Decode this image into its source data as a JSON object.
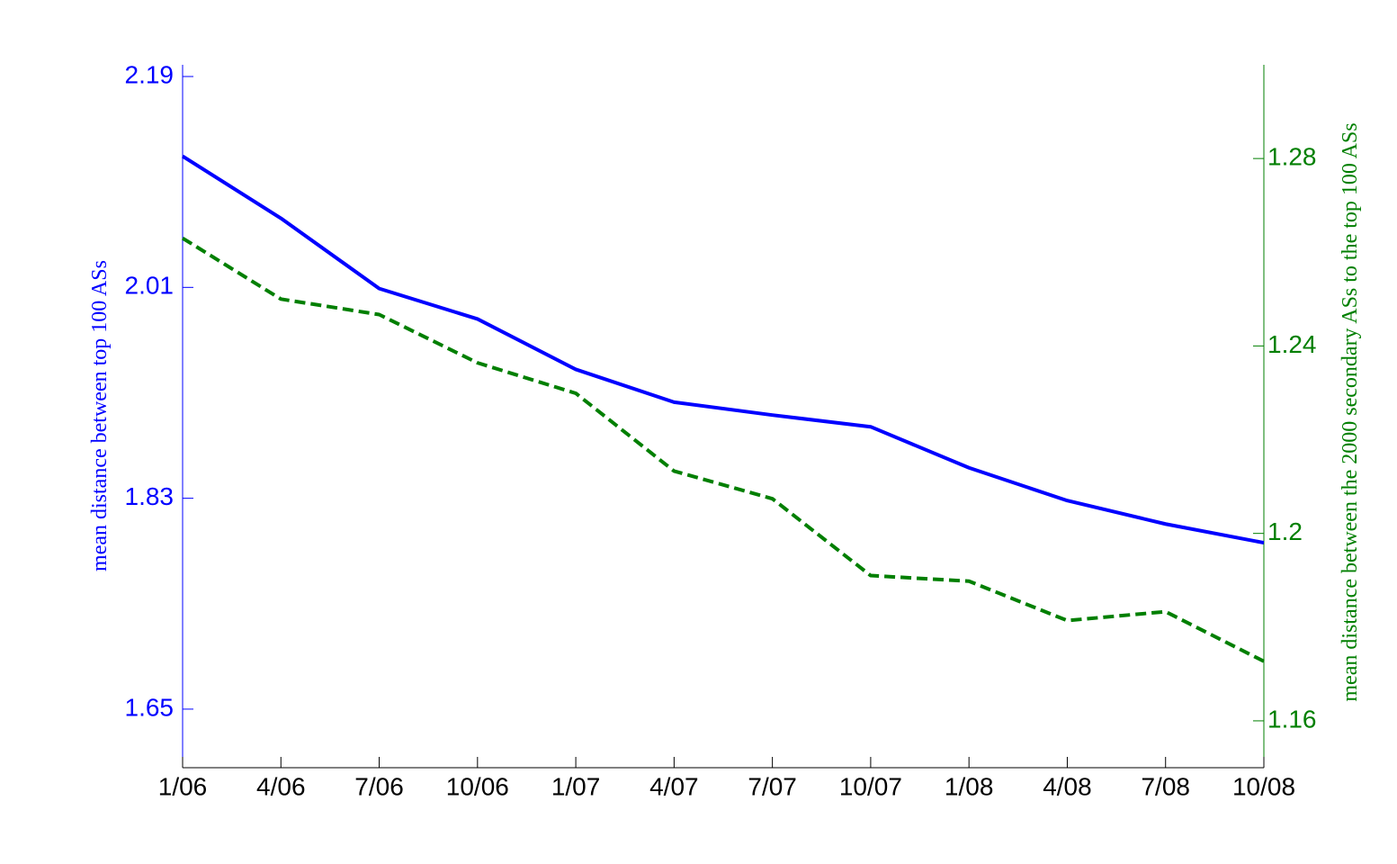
{
  "chart_data": {
    "type": "line",
    "categories": [
      "1/06",
      "4/06",
      "7/06",
      "10/06",
      "1/07",
      "4/07",
      "7/07",
      "10/07",
      "1/08",
      "4/08",
      "7/08",
      "10/08"
    ],
    "y_label": "mean distance between top 100 ASs",
    "y2_label": "mean distance between the 2000 secondary ASs to the top 100 ASs",
    "ylim": [
      1.6,
      2.2
    ],
    "yticks": [
      1.65,
      1.83,
      2.01,
      2.19
    ],
    "y2lim": [
      1.15,
      1.3
    ],
    "y2ticks": [
      1.16,
      1.2,
      1.24,
      1.28
    ],
    "y_color": "#0000ff",
    "y2_color": "#007f00",
    "series": [
      {
        "color": "#0000ff",
        "dash": "solid",
        "values": [
          2.122,
          2.069,
          2.009,
          1.983,
          1.94,
          1.912,
          1.901,
          1.891,
          1.856,
          1.828,
          1.808,
          1.792
        ]
      },
      {
        "color": "#007f00",
        "dash": "dashed",
        "axis": "y2",
        "values": [
          1.263,
          1.25,
          1.2467,
          1.2364,
          1.2299,
          1.2133,
          1.2074,
          1.191,
          1.1898,
          1.1814,
          1.1833,
          1.1727
        ]
      }
    ]
  }
}
